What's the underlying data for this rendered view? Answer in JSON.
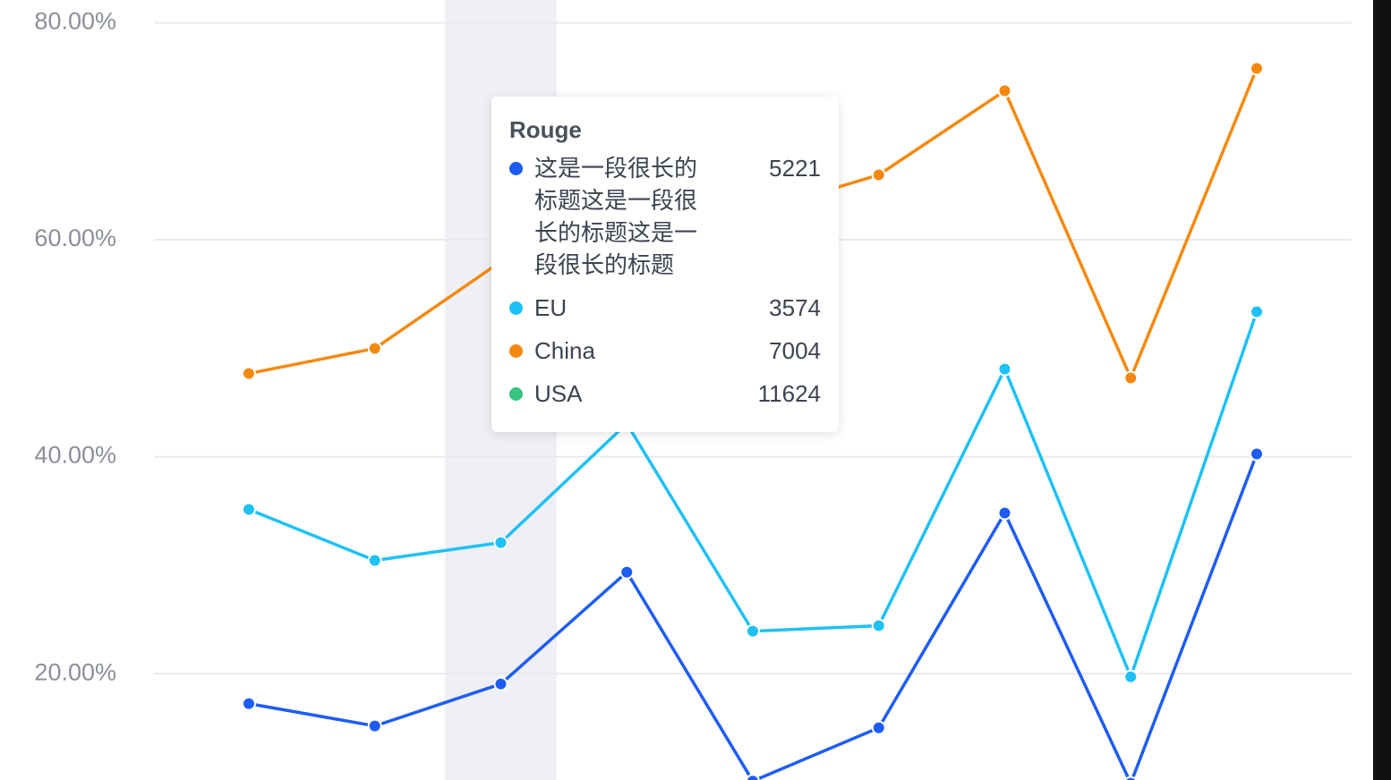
{
  "chart_data": {
    "type": "line",
    "categories": [
      null,
      null,
      "Rouge",
      null,
      null,
      null,
      null,
      null,
      null
    ],
    "ylim": [
      10.2,
      82.1
    ],
    "yticks": [
      {
        "value": 20,
        "label": "20.00%"
      },
      {
        "value": 40,
        "label": "40.00%"
      },
      {
        "value": 60,
        "label": "60.00%"
      },
      {
        "value": 80,
        "label": "80.00%"
      }
    ],
    "grid": true,
    "series": [
      {
        "name": "这是一段很长的标题这是一段很长的标题这是一段很长的标题",
        "color": "#1e5cf5",
        "values": [
          17.24,
          15.18,
          19.05,
          29.36,
          10.1,
          15.01,
          34.81,
          9.9,
          40.25
        ]
      },
      {
        "name": "EU",
        "color": "#1ec1f5",
        "values": [
          35.14,
          30.44,
          32.08,
          43.05,
          23.92,
          24.42,
          48.08,
          19.71,
          53.36
        ]
      },
      {
        "name": "China",
        "color": "#f5890f",
        "values": [
          47.67,
          49.98,
          57.98,
          60.5,
          62.5,
          65.98,
          73.73,
          47.26,
          75.79
        ]
      },
      {
        "name": "USA",
        "color": "#36c47e",
        "values": [
          null,
          null,
          null,
          null,
          null,
          null,
          null,
          null,
          null
        ]
      }
    ],
    "tooltip": {
      "values": [
        5221,
        3574,
        7004,
        11624
      ]
    }
  }
}
